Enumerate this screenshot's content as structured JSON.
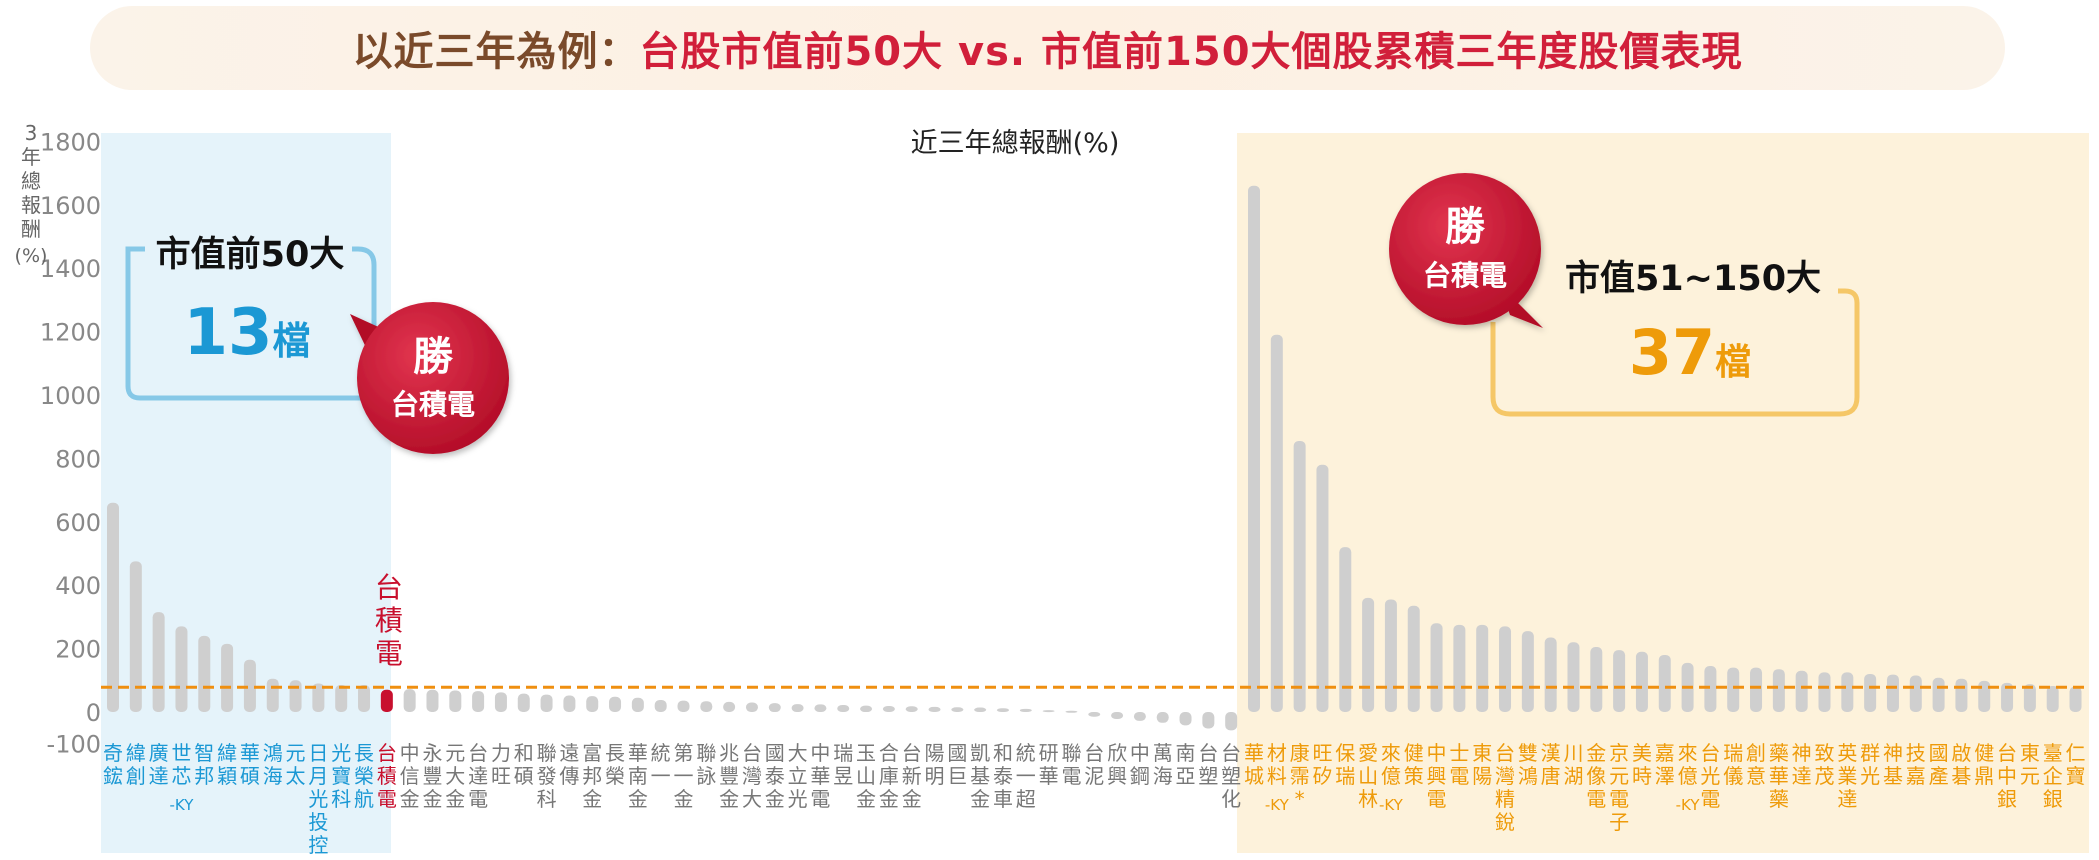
{
  "title": {
    "prefix": "以近三年為例：",
    "main": "台股市值前50大 vs. 市值前150大個股累積三年度股價表現"
  },
  "colors": {
    "blue": "#1b98d4",
    "orange": "#ee9b0a",
    "red": "#c8102e",
    "grey_bar": "#cfcfcf",
    "ref_line": "#ef8f10",
    "panel_blue": "#e5f3fa",
    "panel_orange": "#fdf2db"
  },
  "callouts": {
    "top50": {
      "title": "市值前50大",
      "count": "13",
      "unit": "檔"
    },
    "rest": {
      "title": "市值51~150大",
      "count": "37",
      "unit": "檔"
    },
    "win": {
      "top": "勝",
      "bottom": "台積電"
    }
  },
  "chart_data": {
    "type": "bar",
    "title": "近三年總報酬(%)",
    "ylabel": "3年總報酬(%)",
    "ylim": [
      -100,
      1800
    ],
    "yticks": [
      -100,
      0,
      200,
      400,
      600,
      800,
      1000,
      1200,
      1400,
      1600,
      1800
    ],
    "reference_value": 78,
    "highlight_label": "台積電",
    "categories": [
      "奇鋐",
      "緯創",
      "廣達",
      "世芯-KY",
      "智邦",
      "緯穎",
      "華碩",
      "鴻海",
      "元太",
      "日月光投控",
      "光寶科",
      "長榮航",
      "台積電",
      "中信金",
      "永豐金",
      "元大金",
      "台達電",
      "力旺",
      "和碩",
      "聯發科",
      "遠傳",
      "富邦金",
      "長榮",
      "華南金",
      "統一",
      "第一金",
      "聯詠",
      "兆豐金",
      "台灣大",
      "國泰金",
      "大立光",
      "中華電",
      "瑞昱",
      "玉山金",
      "合庫金",
      "台新金",
      "陽明",
      "國巨",
      "凱基金",
      "和泰車",
      "統一超",
      "研華",
      "聯電",
      "台泥",
      "欣興",
      "中鋼",
      "萬海",
      "南亞",
      "台塑",
      "台塑化",
      "華城",
      "材料-KY",
      "康霈*",
      "旺矽",
      "保瑞",
      "愛山林",
      "來億-KY",
      "健策",
      "中興電",
      "士電",
      "東陽",
      "台灣精銳",
      "雙鴻",
      "漢唐",
      "川湖",
      "金像電",
      "京元電子",
      "美時",
      "嘉澤",
      "來億-KY",
      "台光電",
      "瑞儀",
      "創意",
      "藥華藥",
      "神達",
      "致茂",
      "英業達",
      "群光",
      "神基",
      "技嘉",
      "國產",
      "啟碁",
      "健鼎",
      "台中銀",
      "東元",
      "臺企銀",
      "仁寶"
    ],
    "values": [
      660,
      475,
      315,
      270,
      240,
      215,
      165,
      105,
      100,
      90,
      85,
      85,
      70,
      72,
      70,
      68,
      66,
      62,
      58,
      55,
      52,
      50,
      48,
      45,
      38,
      36,
      34,
      32,
      30,
      28,
      25,
      24,
      22,
      20,
      19,
      18,
      16,
      15,
      14,
      12,
      10,
      6,
      4,
      -15,
      -22,
      -28,
      -34,
      -42,
      -52,
      -58,
      1660,
      1190,
      855,
      780,
      520,
      360,
      355,
      335,
      280,
      275,
      275,
      270,
      255,
      235,
      220,
      205,
      195,
      190,
      180,
      155,
      145,
      140,
      140,
      135,
      130,
      125,
      125,
      120,
      118,
      115,
      108,
      105,
      98,
      92,
      88,
      82,
      80
    ],
    "group_top50_count": 50
  }
}
